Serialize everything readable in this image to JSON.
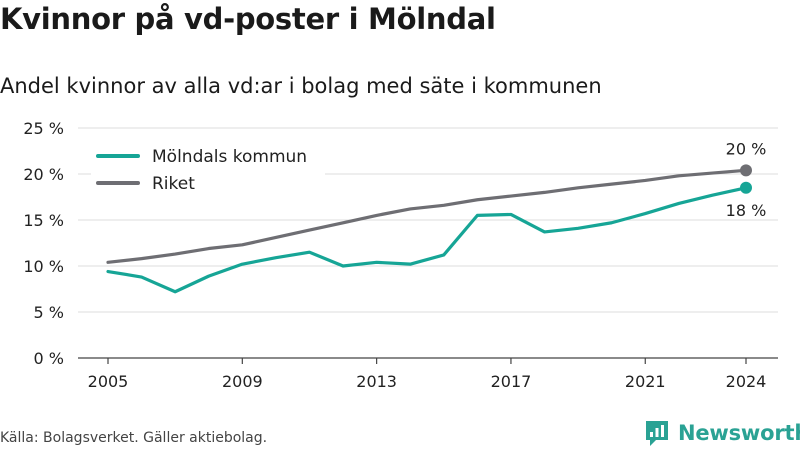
{
  "header": {
    "title": "Kvinnor på vd-poster i Mölndal",
    "subtitle": "Andel kvinnor av alla vd:ar i bolag med säte i kommunen"
  },
  "footer": {
    "source": "Källa: Bolagsverket. Gäller aktiebolag.",
    "logo_text": "Newsworthy",
    "logo_icon": "newsworthy-logo-icon"
  },
  "chart_data": {
    "type": "line",
    "title": "Kvinnor på vd-poster i Mölndal",
    "subtitle": "Andel kvinnor av alla vd:ar i bolag med säte i kommunen",
    "xlabel": "",
    "ylabel": "",
    "x": [
      2005,
      2006,
      2007,
      2008,
      2009,
      2010,
      2011,
      2012,
      2013,
      2014,
      2015,
      2016,
      2017,
      2018,
      2019,
      2020,
      2021,
      2022,
      2023,
      2024
    ],
    "x_ticks": [
      2005,
      2009,
      2013,
      2017,
      2021,
      2024
    ],
    "y_ticks": [
      0,
      5,
      10,
      15,
      20,
      25
    ],
    "y_tick_suffix": " %",
    "ylim": [
      0,
      25
    ],
    "grid": "horizontal",
    "legend_position": "top-left",
    "series": [
      {
        "name": "Mölndals kommun",
        "color": "#16a596",
        "values": [
          9.4,
          8.8,
          7.2,
          8.9,
          10.2,
          10.9,
          11.5,
          10.0,
          10.4,
          10.2,
          11.2,
          15.5,
          15.6,
          13.7,
          14.1,
          14.7,
          15.7,
          16.8,
          17.7,
          18.5
        ],
        "end_label": "18 %"
      },
      {
        "name": "Riket",
        "color": "#6e6e73",
        "values": [
          10.4,
          10.8,
          11.3,
          11.9,
          12.3,
          13.1,
          13.9,
          14.7,
          15.5,
          16.2,
          16.6,
          17.2,
          17.6,
          18.0,
          18.5,
          18.9,
          19.3,
          19.8,
          20.1,
          20.4
        ],
        "end_label": "20 %"
      }
    ],
    "colors": {
      "grid": "#dcdcdc",
      "axis": "#444444",
      "text": "#222222"
    }
  }
}
